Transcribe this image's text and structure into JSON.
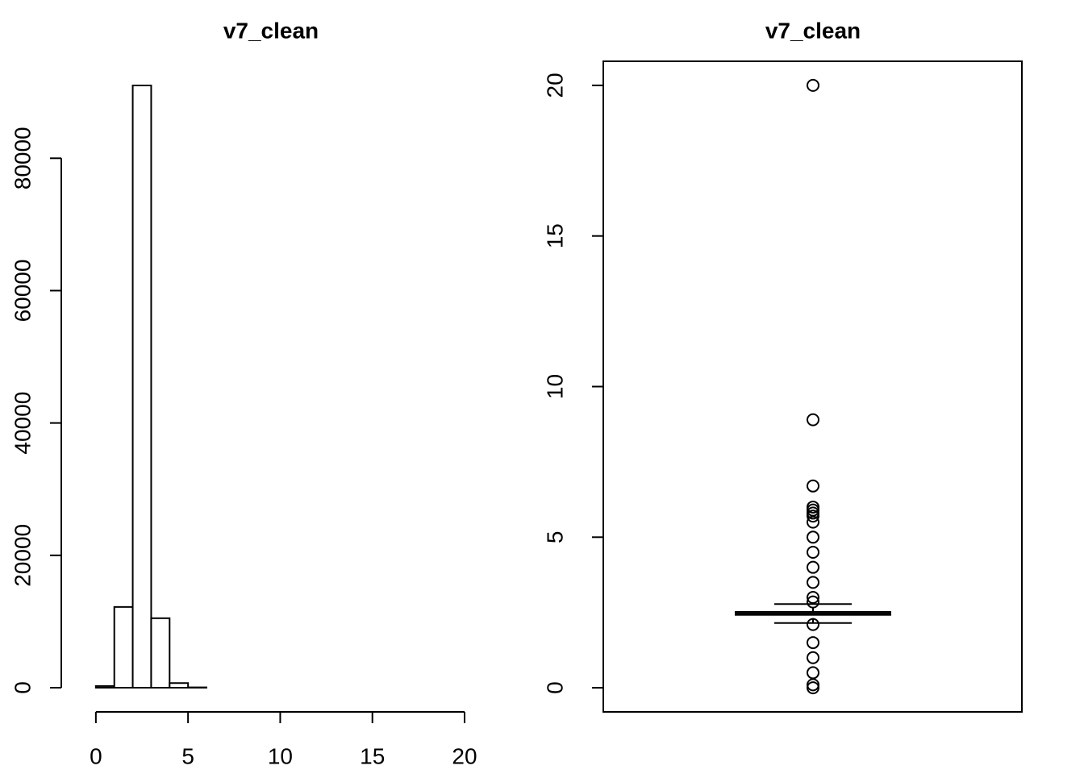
{
  "chart_data": [
    {
      "type": "histogram",
      "title": "v7_clean",
      "bins": [
        -1,
        0,
        1,
        2,
        3,
        4,
        5,
        6,
        7,
        8,
        9,
        10,
        11,
        12,
        13,
        14,
        15,
        16,
        17,
        18,
        19,
        20
      ],
      "values": [
        0,
        250,
        12200,
        91000,
        10500,
        700,
        50,
        0,
        0,
        0,
        0,
        0,
        0,
        0,
        0,
        0,
        0,
        0,
        0,
        0,
        0
      ],
      "color": "#ffffff",
      "xlim": [
        -1,
        20
      ],
      "xticks": [
        0,
        5,
        10,
        15,
        20
      ],
      "ylim": [
        0,
        91000
      ],
      "yticks": [
        0,
        20000,
        40000,
        60000,
        80000
      ]
    },
    {
      "type": "box",
      "title": "v7_clean",
      "whisker_low": 2.15,
      "q1": 2.42,
      "median": 2.47,
      "q3": 2.52,
      "whisker_high": 2.78,
      "outliers": [
        20,
        8.9,
        6.7,
        6.0,
        5.9,
        5.8,
        5.7,
        5.5,
        5.0,
        4.5,
        4.0,
        3.5,
        3.0,
        2.85,
        2.1,
        1.5,
        1.0,
        0.5,
        0.1,
        0
      ],
      "color": "#ffffff",
      "ylim": [
        -0.8,
        20.8
      ],
      "yticks": [
        0,
        5,
        10,
        15,
        20
      ]
    }
  ]
}
